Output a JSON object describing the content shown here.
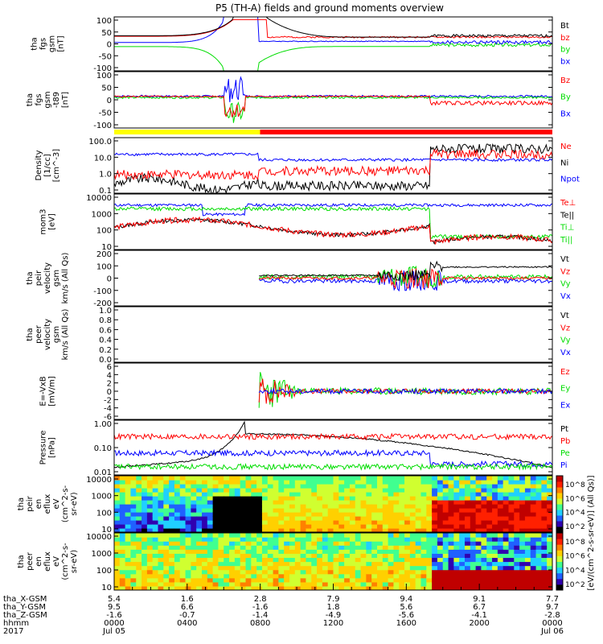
{
  "title": "P5 (TH-A) fields and ground moments overview",
  "colors": {
    "black": "#000000",
    "red": "#ff0000",
    "green": "#00dd00",
    "blue": "#0000ff",
    "yellow": "#ffff00"
  },
  "chart_data": [
    {
      "type": "line",
      "ylabel": [
        "tha",
        "fgs",
        "gsm",
        "[nT]"
      ],
      "ticks": [
        "100",
        "50",
        "0",
        "-50",
        "-100"
      ],
      "ylim": [
        -100,
        100
      ],
      "legend": [
        {
          "name": "Bt",
          "color": "black"
        },
        {
          "name": "bz",
          "color": "red"
        },
        {
          "name": "by",
          "color": "green"
        },
        {
          "name": "bx",
          "color": "blue"
        }
      ]
    },
    {
      "type": "line",
      "ylabel": [
        "tha",
        "fgs",
        "gsm",
        "-t89",
        "[nT]"
      ],
      "ticks": [
        "100",
        "50",
        "0",
        "-50",
        "-100"
      ],
      "ylim": [
        -120,
        100
      ],
      "legend": [
        {
          "name": "Bz",
          "color": "red"
        },
        {
          "name": "By",
          "color": "green"
        },
        {
          "name": "Bx",
          "color": "blue"
        }
      ]
    },
    {
      "type": "line",
      "log": true,
      "ylabel": [
        "Density",
        "[1/cc]",
        "[cm^-3]"
      ],
      "ticks": [
        "100.0",
        "10.0",
        "1.0",
        "0.1"
      ],
      "legend": [
        {
          "name": "Ne",
          "color": "red"
        },
        {
          "name": "Ni",
          "color": "black"
        },
        {
          "name": "Npot",
          "color": "blue"
        }
      ]
    },
    {
      "type": "line",
      "log": true,
      "ylabel": [
        "mom3",
        "[eV]"
      ],
      "ticks": [
        "10000",
        "1000",
        "100",
        "10"
      ],
      "legend": [
        {
          "name": "Te⊥",
          "color": "red"
        },
        {
          "name": "Te||",
          "color": "black"
        },
        {
          "name": "Ti⊥",
          "color": "green"
        },
        {
          "name": "Ti||",
          "color": "green"
        }
      ]
    },
    {
      "type": "line",
      "ylabel": [
        "tha",
        "peir",
        "velocity",
        "gsm",
        "km/s (All Qs)"
      ],
      "ticks": [
        "200",
        "100",
        "0",
        "-100",
        "-200"
      ],
      "ylim": [
        -200,
        200
      ],
      "legend": [
        {
          "name": "Vt",
          "color": "black"
        },
        {
          "name": "Vz",
          "color": "red"
        },
        {
          "name": "Vy",
          "color": "green"
        },
        {
          "name": "Vx",
          "color": "blue"
        }
      ]
    },
    {
      "type": "line",
      "ylabel": [
        "tha",
        "peer",
        "velocity",
        "gsm",
        "km/s (All Qs)"
      ],
      "ticks": [
        "1.0",
        "0.8",
        "0.6",
        "0.4",
        "0.2",
        "0.0"
      ],
      "ylim": [
        0,
        1
      ],
      "legend": [
        {
          "name": "Vt",
          "color": "black"
        },
        {
          "name": "Vz",
          "color": "red"
        },
        {
          "name": "Vy",
          "color": "green"
        },
        {
          "name": "Vx",
          "color": "blue"
        }
      ]
    },
    {
      "type": "line",
      "ylabel": [
        "E=-VxB",
        "[mV/m]"
      ],
      "ticks": [
        "6",
        "4",
        "2",
        "0",
        "-2",
        "-4",
        "-6"
      ],
      "ylim": [
        -6,
        6
      ],
      "legend": [
        {
          "name": "Ez",
          "color": "red"
        },
        {
          "name": "Ey",
          "color": "green"
        },
        {
          "name": "Ex",
          "color": "blue"
        }
      ]
    },
    {
      "type": "line",
      "log": true,
      "ylabel": [
        "Pressure",
        "[nPa]"
      ],
      "ticks": [
        "1.00",
        "0.10",
        "0.01"
      ],
      "legend": [
        {
          "name": "Pt",
          "color": "black"
        },
        {
          "name": "Pb",
          "color": "red"
        },
        {
          "name": "Pe",
          "color": "green"
        },
        {
          "name": "Pi",
          "color": "blue"
        }
      ]
    },
    {
      "type": "heatmap",
      "ylabel": [
        "tha",
        "peir",
        "en",
        "eflux",
        "eV",
        "(cm^2-s-",
        "sr-eV)"
      ],
      "ticks": [
        "10000",
        "1000",
        "100",
        "10"
      ],
      "colorbar_ticks": [
        "10^8",
        "10^6",
        "10^4",
        "10^2"
      ]
    },
    {
      "type": "heatmap",
      "ylabel": [
        "tha",
        "peer",
        "en",
        "eflux",
        "eV",
        "(cm^2-s-",
        "sr-eV)"
      ],
      "ticks": [
        "10000",
        "1000",
        "100",
        "10"
      ],
      "colorbar_ticks": [
        "10^8",
        "10^6",
        "10^4",
        "10^2"
      ]
    }
  ],
  "colorbar_label": "[eV/(cm^2-s-sr-eV)] (All Qs)]",
  "xaxis": {
    "row_labels": [
      "tha_X-GSM",
      "tha_Y-GSM",
      "tha_Z-GSM",
      "hhmm",
      "2017"
    ],
    "columns": [
      {
        "x": "5.4",
        "y": "9.5",
        "z": "-1.6",
        "hhmm": "0000",
        "date": "Jul 05"
      },
      {
        "x": "1.6",
        "y": "6.6",
        "z": "-0.7",
        "hhmm": "0400",
        "date": ""
      },
      {
        "x": "2.8",
        "y": "-1.6",
        "z": "-1.4",
        "hhmm": "0800",
        "date": ""
      },
      {
        "x": "7.9",
        "y": "1.8",
        "z": "-4.9",
        "hhmm": "1200",
        "date": ""
      },
      {
        "x": "9.4",
        "y": "5.6",
        "z": "-5.6",
        "hhmm": "1600",
        "date": ""
      },
      {
        "x": "9.1",
        "y": "6.7",
        "z": "-4.1",
        "hhmm": "2000",
        "date": ""
      },
      {
        "x": "7.7",
        "y": "9.7",
        "z": "-2.8",
        "hhmm": "0000",
        "date": "Jul 06"
      }
    ]
  }
}
